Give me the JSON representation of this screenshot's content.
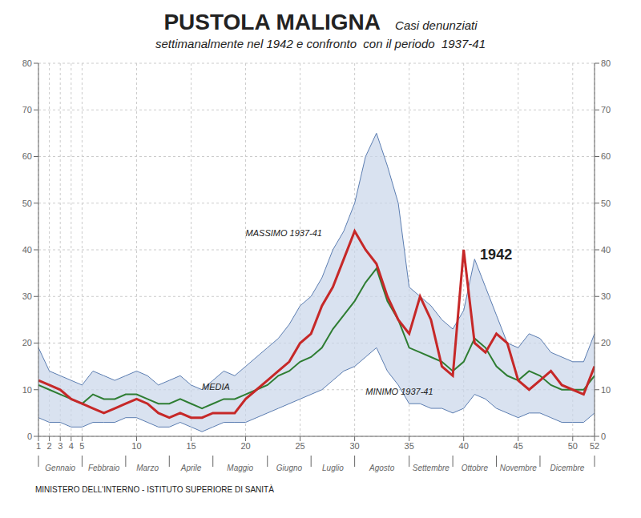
{
  "chart_data": {
    "type": "line",
    "title": "PUSTOLA MALIGNA",
    "subtitle": [
      "Casi denunziati",
      "settimanalmente nel 1942 e confronto  con il periodo  1937-41"
    ],
    "footer": "MINISTERO DELL'INTERNO - ISTITUTO SUPERIORE DI SANITÀ",
    "x": [
      1,
      2,
      3,
      4,
      5,
      6,
      7,
      8,
      9,
      10,
      11,
      12,
      13,
      14,
      15,
      16,
      17,
      18,
      19,
      20,
      21,
      22,
      23,
      24,
      25,
      26,
      27,
      28,
      29,
      30,
      31,
      32,
      33,
      34,
      35,
      36,
      37,
      38,
      39,
      40,
      41,
      42,
      43,
      44,
      45,
      46,
      47,
      48,
      49,
      50,
      51,
      52
    ],
    "series": [
      {
        "name": "MASSIMO 1937-41",
        "color": "#5b7db1",
        "values": [
          19,
          14,
          13,
          12,
          11,
          14,
          13,
          12,
          13,
          14,
          13,
          11,
          12,
          13,
          11,
          10,
          12,
          14,
          13,
          15,
          17,
          19,
          21,
          24,
          28,
          30,
          34,
          40,
          44,
          50,
          60,
          65,
          58,
          50,
          32,
          30,
          28,
          25,
          23,
          27,
          38,
          32,
          26,
          20,
          19,
          22,
          21,
          18,
          17,
          16,
          16,
          22
        ]
      },
      {
        "name": "MEDIA",
        "color": "#2e7d32",
        "values": [
          11,
          10,
          9,
          8,
          7,
          9,
          8,
          8,
          9,
          9,
          8,
          7,
          7,
          8,
          7,
          6,
          7,
          8,
          8,
          9,
          10,
          11,
          13,
          14,
          16,
          17,
          19,
          23,
          26,
          29,
          33,
          36,
          29,
          25,
          19,
          18,
          17,
          16,
          14,
          16,
          21,
          19,
          15,
          13,
          12,
          14,
          13,
          11,
          10,
          10,
          10,
          13
        ]
      },
      {
        "name": "MINIMO 1937-41",
        "color": "#5b7db1",
        "values": [
          4,
          3,
          3,
          2,
          2,
          3,
          3,
          3,
          4,
          4,
          3,
          2,
          2,
          3,
          2,
          1,
          2,
          3,
          3,
          3,
          4,
          5,
          6,
          7,
          8,
          9,
          10,
          12,
          14,
          15,
          17,
          19,
          14,
          11,
          7,
          7,
          6,
          6,
          5,
          6,
          9,
          8,
          6,
          5,
          4,
          5,
          5,
          4,
          3,
          3,
          3,
          5
        ]
      },
      {
        "name": "1942",
        "color": "#c62828",
        "values": [
          12,
          11,
          10,
          8,
          7,
          6,
          5,
          6,
          7,
          8,
          7,
          5,
          4,
          5,
          4,
          4,
          5,
          5,
          5,
          8,
          10,
          12,
          14,
          16,
          20,
          22,
          28,
          32,
          38,
          44,
          40,
          37,
          30,
          25,
          22,
          30,
          25,
          15,
          13,
          40,
          20,
          18,
          22,
          20,
          12,
          10,
          12,
          14,
          11,
          10,
          9,
          15
        ]
      }
    ],
    "band": {
      "lower": "MINIMO 1937-41",
      "upper": "MASSIMO 1937-41",
      "color": "#c9d6ea"
    },
    "annotations": [
      {
        "text": "MASSIMO 1937-41",
        "x": 20,
        "y": 43
      },
      {
        "text": "MEDIA",
        "x": 16,
        "y": 10
      },
      {
        "text": "MINIMO 1937-41",
        "x": 31,
        "y": 9
      },
      {
        "text": "1942",
        "x": 41.5,
        "y": 38
      }
    ],
    "xlim": [
      1,
      52
    ],
    "xticks": [
      1,
      2,
      3,
      4,
      5,
      10,
      15,
      20,
      25,
      30,
      35,
      40,
      45,
      50,
      52
    ],
    "x2ticks": [
      {
        "value": 3,
        "label": "Gennaio"
      },
      {
        "value": 7,
        "label": "Febbraio"
      },
      {
        "value": 11,
        "label": "Marzo"
      },
      {
        "value": 15,
        "label": "Aprile"
      },
      {
        "value": 19.5,
        "label": "Maggio"
      },
      {
        "value": 24,
        "label": "Giugno"
      },
      {
        "value": 28,
        "label": "Luglio"
      },
      {
        "value": 32.5,
        "label": "Agosto"
      },
      {
        "value": 37,
        "label": "Settembre"
      },
      {
        "value": 41,
        "label": "Ottobre"
      },
      {
        "value": 45,
        "label": "Novembre"
      },
      {
        "value": 49.5,
        "label": "Dicembre"
      }
    ],
    "month_dividers": [
      1,
      5,
      9,
      13,
      17,
      22,
      26,
      30,
      35,
      39,
      43,
      47,
      52
    ],
    "ylim": [
      0,
      80
    ],
    "yticks": [
      0,
      10,
      20,
      30,
      40,
      50,
      60,
      70,
      80
    ],
    "y2lim": [
      0,
      80
    ],
    "y2ticks": [
      0,
      10,
      20,
      30,
      40,
      50,
      60,
      70,
      80
    ],
    "grid": true
  }
}
